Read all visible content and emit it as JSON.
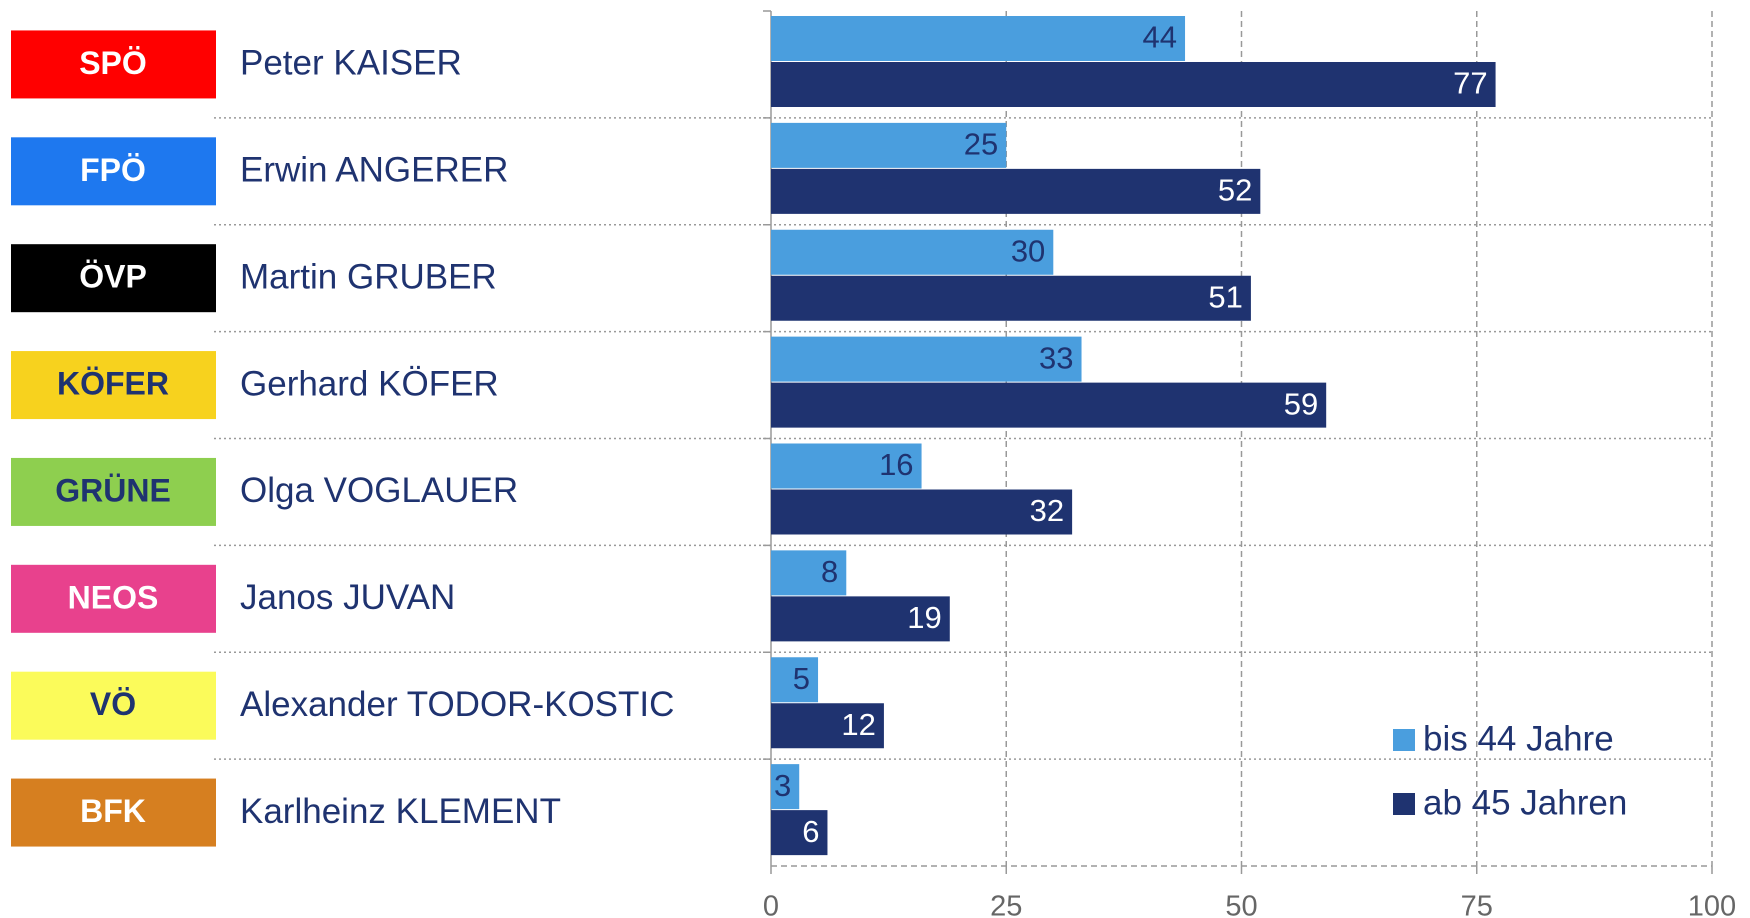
{
  "chart_data": {
    "type": "hbar",
    "parties": [
      {
        "name": "SPÖ",
        "color": "#ff0000",
        "text_color": "#ffffff"
      },
      {
        "name": "FPÖ",
        "color": "#1e78ef",
        "text_color": "#ffffff"
      },
      {
        "name": "ÖVP",
        "color": "#000000",
        "text_color": "#ffffff"
      },
      {
        "name": "KÖFER",
        "color": "#f7d21e",
        "text_color": "#1f3370"
      },
      {
        "name": "GRÜNE",
        "color": "#8ecf4f",
        "text_color": "#1f3370"
      },
      {
        "name": "NEOS",
        "color": "#e8418d",
        "text_color": "#ffffff"
      },
      {
        "name": "VÖ",
        "color": "#fbfb5a",
        "text_color": "#1f3370"
      },
      {
        "name": "BFK",
        "color": "#d67f20",
        "text_color": "#ffffff"
      }
    ],
    "categories": [
      "Peter KAISER",
      "Erwin ANGERER",
      "Martin GRUBER",
      "Gerhard KÖFER",
      "Olga VOGLAUER",
      "Janos JUVAN",
      "Alexander TODOR-KOSTIC",
      "Karlheinz KLEMENT"
    ],
    "series": [
      {
        "name": "bis 44 Jahre",
        "color": "#4a9ede",
        "label_color": "#1f3370",
        "values": [
          44,
          25,
          30,
          33,
          16,
          8,
          5,
          3
        ]
      },
      {
        "name": "ab 45 Jahren",
        "color": "#1f3370",
        "label_color": "#ffffff",
        "values": [
          77,
          52,
          51,
          59,
          32,
          19,
          12,
          6
        ]
      }
    ],
    "xlim": [
      0,
      100
    ],
    "xticks": [
      0,
      25,
      50,
      75,
      100
    ],
    "grid": true,
    "legend": "lower right"
  }
}
